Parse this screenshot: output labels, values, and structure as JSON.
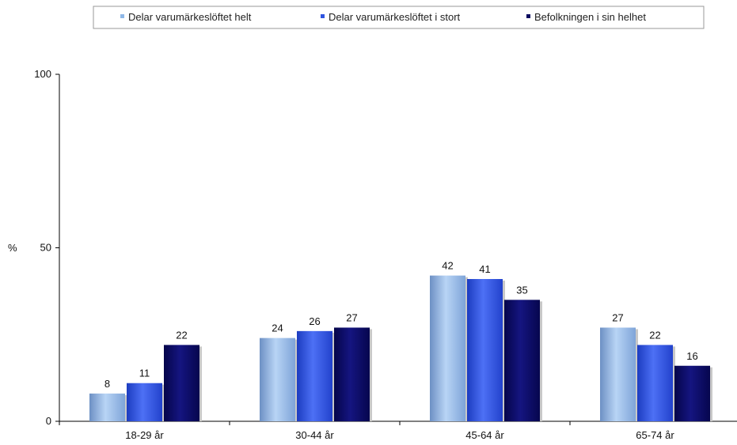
{
  "chart_data": {
    "type": "bar",
    "title": "",
    "xlabel": "",
    "ylabel": "%",
    "ylim": [
      0,
      100
    ],
    "yticks": [
      "0",
      "50",
      "100"
    ],
    "categories": [
      "18-29 år",
      "30-44 år",
      "45-64 år",
      "65-74 år"
    ],
    "series": [
      {
        "name": "Delar varumärkeslöftet helt",
        "values": [
          8,
          24,
          42,
          27
        ],
        "color": "#8fb8e8"
      },
      {
        "name": "Delar varumärkeslöftet i stort",
        "values": [
          11,
          26,
          41,
          22
        ],
        "color": "#2f54e0"
      },
      {
        "name": "Befolkningen i sin helhet",
        "values": [
          22,
          27,
          35,
          16
        ],
        "color": "#0a0a60"
      }
    ],
    "legend_position": "top",
    "grid": false
  }
}
